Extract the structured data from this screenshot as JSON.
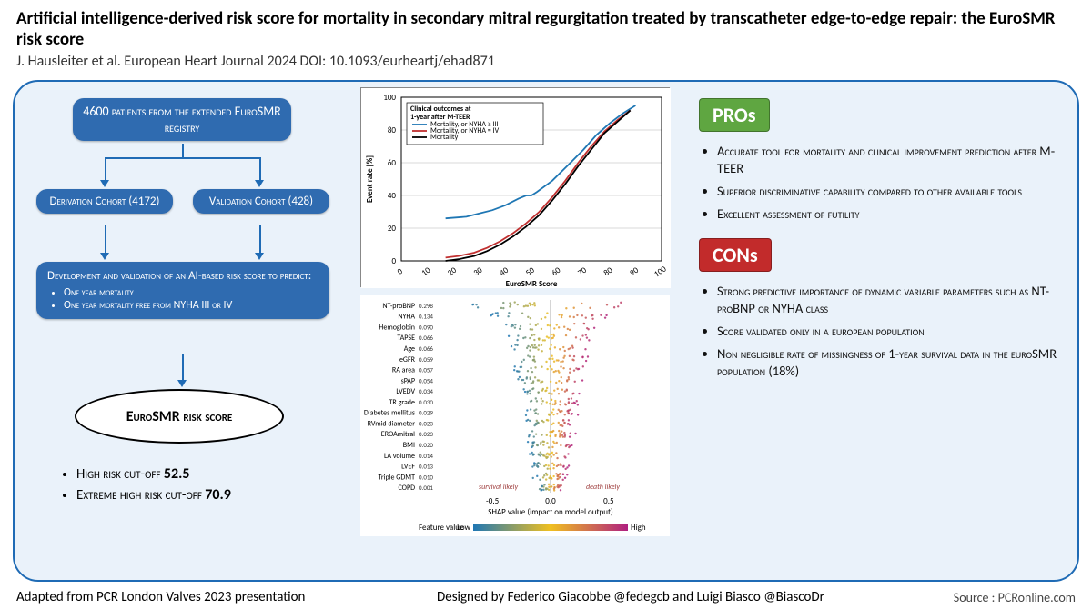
{
  "header": {
    "title": "Artificial intelligence-derived risk score for mortality in secondary mitral regurgitation treated by transcatheter edge-to-edge repair: the EuroSMR risk score",
    "citation": "J. Hausleiter et al. European Heart Journal 2024 DOI: 10.1093/eurheartj/ehad871"
  },
  "flow": {
    "top": "4600 patients from the extended EuroSMR registry",
    "derivation": "Derivation Cohort (4172)",
    "validation": "Validation Cohort (428)",
    "dev_title": "Development and validation of an AI-based risk score to predict:",
    "dev_b1": "One year mortality",
    "dev_b2": "One year mortality free from NYHA III or IV",
    "ellipse": "EuroSMR risk score",
    "cutoff1_label": "High risk cut-off ",
    "cutoff1_val": "52.5",
    "cutoff2_label": "Extreme high risk cut-off ",
    "cutoff2_val": "70.9"
  },
  "chart1": {
    "type": "line",
    "legend_title": "Clinical outcomes at 1-year after M-TEER",
    "series": [
      {
        "label": "Mortality, or NYHA ≥ III",
        "color": "#1f77b4"
      },
      {
        "label": "Mortality, or NYHA = IV",
        "color": "#c03030"
      },
      {
        "label": "Mortality",
        "color": "#000000"
      }
    ],
    "xlabel": "EuroSMR Score",
    "ylabel": "Event rate [%]",
    "xlim": [
      0,
      100
    ],
    "ylim": [
      0,
      100
    ],
    "xticks": [
      0,
      10,
      20,
      30,
      40,
      50,
      60,
      70,
      80,
      90,
      100
    ],
    "yticks": [
      0,
      20,
      40,
      60,
      80,
      100
    ],
    "line_blue": [
      [
        17,
        26
      ],
      [
        25,
        27
      ],
      [
        30,
        29
      ],
      [
        35,
        31
      ],
      [
        40,
        34
      ],
      [
        45,
        38
      ],
      [
        48,
        40
      ],
      [
        50,
        40
      ],
      [
        52,
        42
      ],
      [
        58,
        49
      ],
      [
        65,
        60
      ],
      [
        70,
        68
      ],
      [
        75,
        77
      ],
      [
        80,
        84
      ],
      [
        85,
        90
      ],
      [
        90,
        95
      ]
    ],
    "line_red": [
      [
        17,
        2
      ],
      [
        22,
        3
      ],
      [
        28,
        5
      ],
      [
        33,
        8
      ],
      [
        38,
        12
      ],
      [
        43,
        17
      ],
      [
        48,
        23
      ],
      [
        53,
        30
      ],
      [
        58,
        39
      ],
      [
        63,
        49
      ],
      [
        68,
        60
      ],
      [
        73,
        70
      ],
      [
        78,
        79
      ],
      [
        83,
        86
      ],
      [
        88,
        92
      ]
    ],
    "line_black": [
      [
        17,
        0
      ],
      [
        22,
        1
      ],
      [
        28,
        3
      ],
      [
        33,
        6
      ],
      [
        38,
        10
      ],
      [
        43,
        15
      ],
      [
        48,
        21
      ],
      [
        53,
        28
      ],
      [
        58,
        37
      ],
      [
        63,
        47
      ],
      [
        68,
        58
      ],
      [
        73,
        68
      ],
      [
        78,
        78
      ],
      [
        83,
        85
      ],
      [
        88,
        92
      ]
    ],
    "grid_color": "#d8d8d8",
    "background": "#ffffff"
  },
  "chart2": {
    "type": "shap",
    "xlabel": "SHAP value (impact on model output)",
    "annot_left": "survival likely",
    "annot_right": "death likely",
    "colorbar_label": "Feature value",
    "colorbar_low": "Low",
    "colorbar_high": "High",
    "color_low": "#1f77b4",
    "color_mid": "#f0c020",
    "color_high": "#b02080",
    "xlim": [
      -0.9,
      0.9
    ],
    "xticks": [
      -0.5,
      0.0,
      0.5
    ],
    "features": [
      {
        "name": "NT-proBNP",
        "val": 0.298,
        "spread": 0.75
      },
      {
        "name": "NYHA",
        "val": 0.134,
        "spread": 0.5
      },
      {
        "name": "Hemoglobin",
        "val": 0.09,
        "spread": 0.42
      },
      {
        "name": "TAPSE",
        "val": 0.066,
        "spread": 0.35
      },
      {
        "name": "Age",
        "val": 0.066,
        "spread": 0.34
      },
      {
        "name": "eGFR",
        "val": 0.059,
        "spread": 0.32
      },
      {
        "name": "RA area",
        "val": 0.057,
        "spread": 0.3
      },
      {
        "name": "sPAP",
        "val": 0.054,
        "spread": 0.3
      },
      {
        "name": "LVEDV",
        "val": 0.034,
        "spread": 0.24
      },
      {
        "name": "TR grade",
        "val": 0.03,
        "spread": 0.23
      },
      {
        "name": "Diabetes mellitus",
        "val": 0.029,
        "spread": 0.22
      },
      {
        "name": "RVmid diameter",
        "val": 0.023,
        "spread": 0.2
      },
      {
        "name": "EROAmitral",
        "val": 0.023,
        "spread": 0.2
      },
      {
        "name": "BMI",
        "val": 0.02,
        "spread": 0.18
      },
      {
        "name": "LA volume",
        "val": 0.014,
        "spread": 0.16
      },
      {
        "name": "LVEF",
        "val": 0.013,
        "spread": 0.15
      },
      {
        "name": "Triple GDMT",
        "val": 0.01,
        "spread": 0.14
      },
      {
        "name": "COPD",
        "val": 0.001,
        "spread": 0.1
      }
    ]
  },
  "pros": {
    "badge": "PROs",
    "items": [
      "Accurate tool for mortality and clinical improvement prediction after M-TEER",
      "Superior discriminative capability compared to other available tools",
      "Excellent assessment of futility"
    ]
  },
  "cons": {
    "badge": "CONs",
    "items": [
      "Strong predictive importance of dynamic variable parameters such as NT-proBNP or NYHA class",
      "Score validated only in a european population",
      "Non negligible rate of missingness of 1-year survival data in the euroSMR population (18%)"
    ]
  },
  "footer": {
    "left": "Adapted from PCR London Valves 2023 presentation",
    "mid": "Designed by Federico Giacobbe @fedegcb and Luigi Biasco @BiascoDr",
    "right": "Source : PCRonline.com"
  }
}
